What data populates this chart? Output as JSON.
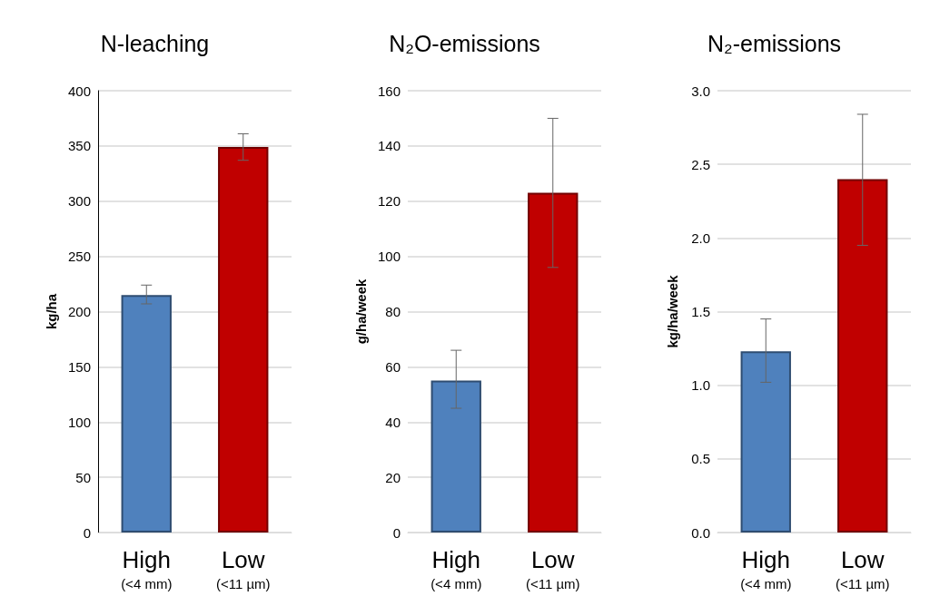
{
  "chart_data": [
    {
      "type": "bar",
      "title": "N-leaching",
      "ylabel": "kg/ha",
      "categories": [
        "High\n(<4 mm)",
        "Low\n(<11 µm)"
      ],
      "values": [
        215,
        349
      ],
      "colors": [
        "#4f81bd",
        "#c00000"
      ],
      "errors": [
        [
          207,
          224
        ],
        [
          337,
          361
        ]
      ],
      "ylim": [
        0,
        400
      ],
      "yticks": [
        0,
        50,
        100,
        150,
        200,
        250,
        300,
        350,
        400
      ],
      "grid": "y"
    },
    {
      "type": "bar",
      "title": "N₂O-emissions",
      "ylabel": "g/ha/week",
      "categories": [
        "High\n(<4 mm)",
        "Low\n(<11 µm)"
      ],
      "values": [
        55,
        123
      ],
      "colors": [
        "#4f81bd",
        "#c00000"
      ],
      "errors": [
        [
          45,
          66
        ],
        [
          96,
          150
        ]
      ],
      "ylim": [
        0,
        160
      ],
      "yticks": [
        0,
        20,
        40,
        60,
        80,
        100,
        120,
        140,
        160
      ],
      "grid": "y"
    },
    {
      "type": "bar",
      "title": "N₂-emissions",
      "ylabel": "kg/ha/week",
      "categories": [
        "High\n(<4 mm)",
        "Low\n(<11 µm)"
      ],
      "values": [
        1.23,
        2.4
      ],
      "colors": [
        "#4f81bd",
        "#c00000"
      ],
      "errors": [
        [
          1.02,
          1.45
        ],
        [
          1.95,
          2.84
        ]
      ],
      "ylim": [
        0,
        3
      ],
      "yticks": [
        {
          "value": 0,
          "label": "0.0"
        },
        0.5,
        {
          "value": 1,
          "label": "1.0"
        },
        1.5,
        {
          "value": 2,
          "label": "2.0"
        },
        2.5,
        {
          "value": 3,
          "label": "3.0"
        }
      ],
      "grid": "y"
    }
  ]
}
